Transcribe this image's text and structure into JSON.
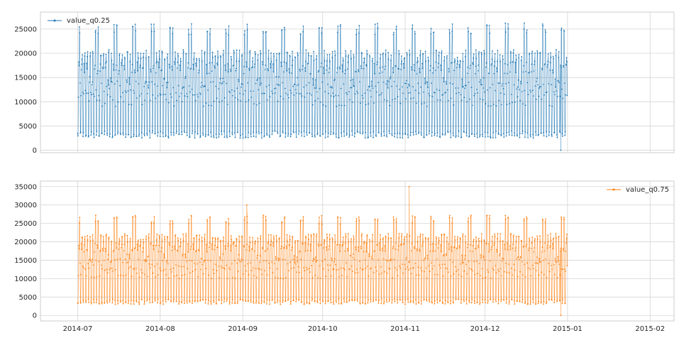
{
  "chart_data": [
    {
      "type": "line",
      "title": "",
      "xlabel": "",
      "ylabel": "",
      "series": [
        {
          "name": "value_q0.25",
          "color": "#1f77b4"
        }
      ],
      "x_range": [
        "2014-07-01",
        "2014-12-31"
      ],
      "ylim": [
        -500,
        28500
      ],
      "yticks": [
        0,
        5000,
        10000,
        15000,
        20000,
        25000
      ],
      "grid": true,
      "legend_position": "upper-left",
      "show_xtick_labels": false,
      "daily_pattern": {
        "night_low": 2500,
        "day_high": 17000,
        "weekend_dip": 14000,
        "weekly_peak": 25000
      },
      "notable_points": [
        {
          "x": "2014-12-29",
          "y": 0,
          "label": "minimum"
        }
      ]
    },
    {
      "type": "line",
      "title": "",
      "xlabel": "",
      "ylabel": "",
      "series": [
        {
          "name": "value_q0.75",
          "color": "#ff7f0e"
        }
      ],
      "x_range": [
        "2014-07-01",
        "2014-12-31"
      ],
      "ylim": [
        -1500,
        36500
      ],
      "yticks": [
        0,
        5000,
        10000,
        15000,
        20000,
        25000,
        30000,
        35000
      ],
      "grid": true,
      "legend_position": "upper-right",
      "show_xtick_labels": true,
      "daily_pattern": {
        "night_low": 3000,
        "day_high": 18500,
        "weekend_dip": 15500,
        "weekly_peak": 26000
      },
      "notable_points": [
        {
          "x": "2014-09-02",
          "y": 30000,
          "label": "spike"
        },
        {
          "x": "2014-11-02",
          "y": 35000,
          "label": "maximum"
        },
        {
          "x": "2014-12-29",
          "y": 0,
          "label": "minimum"
        }
      ]
    }
  ],
  "x_axis": {
    "ticks": [
      {
        "date": "2014-07-01",
        "label": "2014-07"
      },
      {
        "date": "2014-08-01",
        "label": "2014-08"
      },
      {
        "date": "2014-09-01",
        "label": "2014-09"
      },
      {
        "date": "2014-10-01",
        "label": "2014-10"
      },
      {
        "date": "2014-11-01",
        "label": "2014-11"
      },
      {
        "date": "2014-12-01",
        "label": "2014-12"
      },
      {
        "date": "2015-01-01",
        "label": "2015-01"
      },
      {
        "date": "2015-02-01",
        "label": "2015-02"
      }
    ]
  }
}
